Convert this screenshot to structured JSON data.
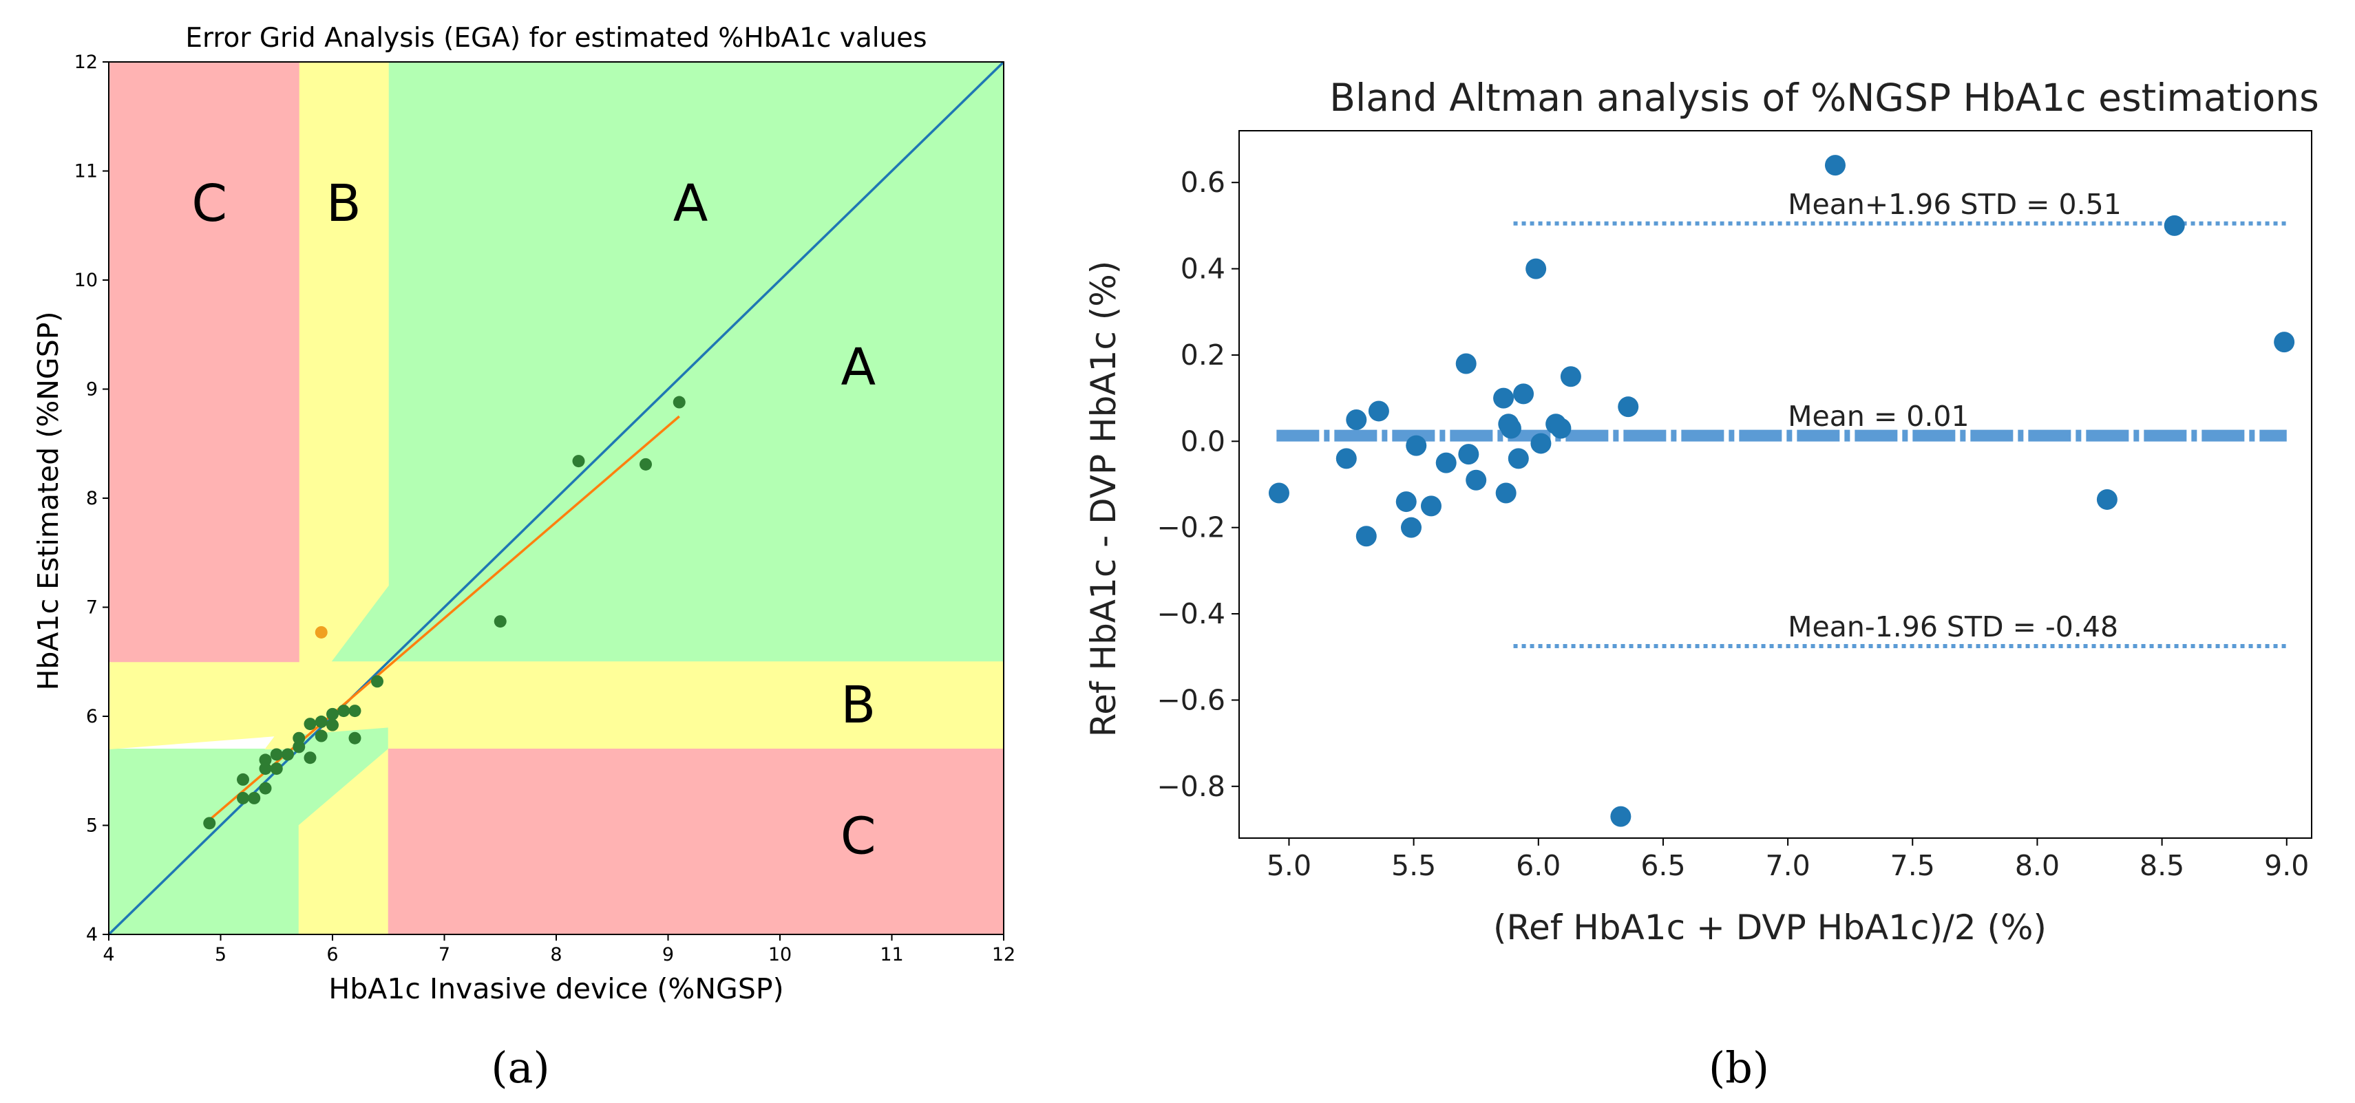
{
  "figure": {
    "panel_a_label": "(a)",
    "panel_b_label": "(b)"
  },
  "chart_data": [
    {
      "type": "scatter",
      "title": "Error Grid Analysis (EGA) for estimated %HbA1c values",
      "xlabel": "HbA1c Invasive device (%NGSP)",
      "ylabel": "HbA1c Estimated (%NGSP)",
      "xlim": [
        4,
        12
      ],
      "ylim": [
        4,
        12
      ],
      "xticks": [
        4,
        5,
        6,
        7,
        8,
        9,
        10,
        11,
        12
      ],
      "yticks": [
        4,
        5,
        6,
        7,
        8,
        9,
        10,
        11,
        12
      ],
      "grid": false,
      "colors": {
        "zone_A": "#b3ffb3",
        "zone_B": "#ffff99",
        "zone_C": "#ffb3b3",
        "points": "#2e7d32",
        "outlier": "#f0a020",
        "identity_line": "#1f77b4",
        "fit_line": "#ff7f0e"
      },
      "zones": {
        "A": {
          "label": "A",
          "polygon": [
            [
              6.5,
              12
            ],
            [
              12,
              12
            ],
            [
              12,
              6.5
            ],
            [
              7.2,
              6.5
            ],
            [
              6.5,
              5.9
            ],
            [
              6.5,
              5.7
            ],
            [
              5.7,
              5.0
            ],
            [
              5.7,
              4
            ],
            [
              4,
              4
            ],
            [
              4,
              5.7
            ],
            [
              5.4,
              5.7
            ],
            [
              6.5,
              7.2
            ]
          ]
        },
        "B_vertical": {
          "label": "B",
          "polygon": [
            [
              5.7,
              12
            ],
            [
              6.5,
              12
            ],
            [
              6.5,
              7.2
            ],
            [
              5.4,
              5.7
            ],
            [
              5.7,
              5.7
            ]
          ]
        },
        "B_horizontal": {
          "label": "B",
          "polygon": [
            [
              4,
              6.5
            ],
            [
              12,
              6.5
            ],
            [
              12,
              5.7
            ],
            [
              6.5,
              5.7
            ],
            [
              6.5,
              5.9
            ],
            [
              4,
              5.7
            ]
          ]
        },
        "B_lower": {
          "label": "B",
          "polygon": [
            [
              5.7,
              4
            ],
            [
              6.5,
              4
            ],
            [
              6.5,
              5.7
            ],
            [
              5.7,
              5.0
            ]
          ]
        },
        "C_upper_left": {
          "label": "C",
          "polygon": [
            [
              4,
              12
            ],
            [
              5.7,
              12
            ],
            [
              5.7,
              6.5
            ],
            [
              4,
              6.5
            ]
          ]
        },
        "C_lower_right": {
          "label": "C",
          "polygon": [
            [
              6.5,
              5.7
            ],
            [
              12,
              5.7
            ],
            [
              12,
              4
            ],
            [
              6.5,
              4
            ]
          ]
        }
      },
      "zone_labels": [
        {
          "text": "C",
          "x": 4.9,
          "y": 10.7
        },
        {
          "text": "B",
          "x": 6.1,
          "y": 10.7
        },
        {
          "text": "A",
          "x": 9.2,
          "y": 10.7
        },
        {
          "text": "A",
          "x": 10.7,
          "y": 9.2
        },
        {
          "text": "B",
          "x": 10.7,
          "y": 6.1
        },
        {
          "text": "C",
          "x": 10.7,
          "y": 4.9
        }
      ],
      "identity_line": {
        "x": [
          4,
          12
        ],
        "y": [
          4,
          12
        ]
      },
      "fit_line": {
        "x": [
          4.9,
          9.1
        ],
        "y": [
          5.05,
          8.75
        ]
      },
      "series": [
        {
          "name": "estimations",
          "points": [
            [
              4.9,
              5.02
            ],
            [
              5.2,
              5.25
            ],
            [
              5.2,
              5.42
            ],
            [
              5.3,
              5.25
            ],
            [
              5.4,
              5.34
            ],
            [
              5.4,
              5.52
            ],
            [
              5.4,
              5.6
            ],
            [
              5.5,
              5.52
            ],
            [
              5.5,
              5.65
            ],
            [
              5.6,
              5.65
            ],
            [
              5.7,
              5.72
            ],
            [
              5.7,
              5.8
            ],
            [
              5.8,
              5.62
            ],
            [
              5.8,
              5.93
            ],
            [
              5.9,
              5.82
            ],
            [
              5.9,
              5.95
            ],
            [
              6.0,
              5.92
            ],
            [
              6.0,
              6.02
            ],
            [
              6.1,
              6.05
            ],
            [
              6.2,
              6.05
            ],
            [
              6.2,
              5.8
            ],
            [
              6.4,
              6.32
            ],
            [
              7.5,
              6.87
            ],
            [
              8.2,
              8.34
            ],
            [
              8.8,
              8.31
            ],
            [
              9.1,
              8.88
            ]
          ]
        },
        {
          "name": "outlier",
          "points": [
            [
              5.9,
              6.77
            ]
          ]
        }
      ]
    },
    {
      "type": "scatter",
      "title": "Bland Altman analysis of %NGSP HbA1c estimations",
      "xlabel": "(Ref HbA1c + DVP HbA1c)/2 (%)",
      "ylabel": "Ref HbA1c - DVP HbA1c (%)",
      "xlim": [
        4.8,
        9.1
      ],
      "ylim": [
        -0.92,
        0.72
      ],
      "xticks": [
        5.0,
        5.5,
        6.0,
        6.5,
        7.0,
        7.5,
        8.0,
        8.5,
        9.0
      ],
      "xtick_labels": [
        "5.0",
        "5.5",
        "6.0",
        "6.5",
        "7.0",
        "7.5",
        "8.0",
        "8.5",
        "9.0"
      ],
      "yticks": [
        0.6,
        0.4,
        0.2,
        0.0,
        -0.2,
        -0.4,
        -0.6,
        -0.8
      ],
      "ytick_labels": [
        "0.6",
        "0.4",
        "0.2",
        "0.0",
        "−0.2",
        "−0.4",
        "−0.6",
        "−0.8"
      ],
      "grid": false,
      "colors": {
        "points": "#1f77b4",
        "lines": "#5b9bd5"
      },
      "reference_lines": [
        {
          "name": "upper",
          "y": 0.505,
          "x": [
            5.9,
            9.0
          ],
          "style": "dotted",
          "label": "Mean+1.96 STD = 0.51",
          "label_x": 7.0
        },
        {
          "name": "mean",
          "y": 0.013,
          "x": [
            4.95,
            9.0
          ],
          "style": "dashdot",
          "label": "Mean = 0.01",
          "label_x": 7.0
        },
        {
          "name": "lower",
          "y": -0.475,
          "x": [
            5.9,
            9.0
          ],
          "style": "dotted",
          "label": "Mean-1.96 STD = -0.48",
          "label_x": 7.0
        }
      ],
      "points": [
        [
          4.96,
          -0.12
        ],
        [
          5.23,
          -0.04
        ],
        [
          5.27,
          0.05
        ],
        [
          5.31,
          -0.22
        ],
        [
          5.36,
          0.07
        ],
        [
          5.47,
          -0.14
        ],
        [
          5.49,
          -0.2
        ],
        [
          5.51,
          -0.01
        ],
        [
          5.57,
          -0.15
        ],
        [
          5.63,
          -0.05
        ],
        [
          5.71,
          0.18
        ],
        [
          5.72,
          -0.03
        ],
        [
          5.75,
          -0.09
        ],
        [
          5.86,
          0.1
        ],
        [
          5.87,
          -0.12
        ],
        [
          5.88,
          0.04
        ],
        [
          5.89,
          0.03
        ],
        [
          5.92,
          -0.04
        ],
        [
          5.94,
          0.11
        ],
        [
          5.99,
          0.4
        ],
        [
          6.01,
          -0.005
        ],
        [
          6.07,
          0.04
        ],
        [
          6.09,
          0.03
        ],
        [
          6.13,
          0.15
        ],
        [
          6.33,
          -0.87
        ],
        [
          6.36,
          0.08
        ],
        [
          7.19,
          0.64
        ],
        [
          8.28,
          -0.135
        ],
        [
          8.55,
          0.5
        ],
        [
          8.99,
          0.23
        ]
      ]
    }
  ]
}
